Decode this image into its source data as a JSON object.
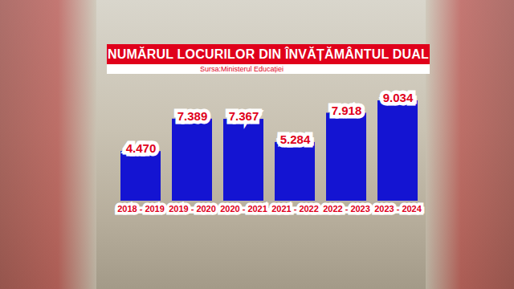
{
  "chart_data": {
    "type": "bar",
    "title": "NUMĂRUL LOCURILOR DIN ÎNVĂȚĂMÂNTUL DUAL",
    "subtitle": "Sursa:Ministerul Educației",
    "categories": [
      "2018 - 2019",
      "2019 - 2020",
      "2020 - 2021",
      "2021 - 2022",
      "2022 - 2023",
      "2023 - 2024"
    ],
    "values": [
      4470,
      7389,
      7367,
      5284,
      7918,
      9034
    ],
    "value_labels": [
      "4.470",
      "7.389",
      "7.367",
      "5.284",
      "7.918",
      "9.034"
    ],
    "color": "#1414d2",
    "data_labels": true,
    "tick_labels": "x"
  }
}
